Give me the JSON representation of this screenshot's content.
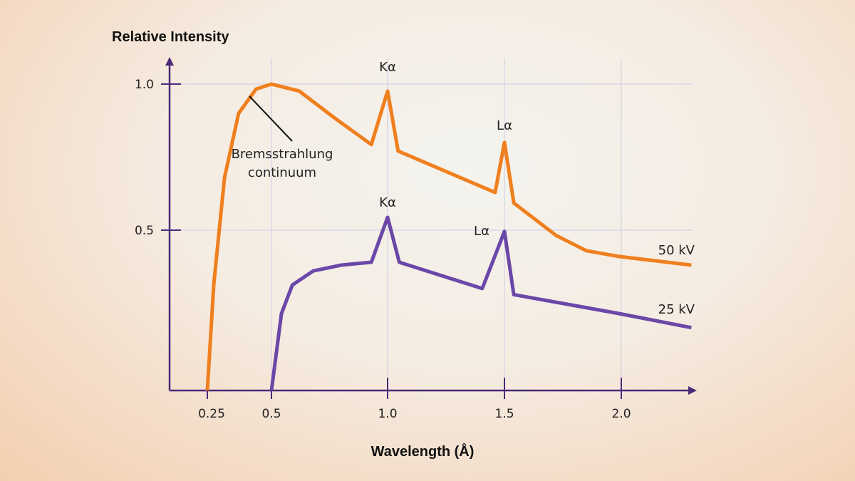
{
  "chart_data": {
    "type": "line",
    "ylabel": "Relative Intensity",
    "xlabel": "Wavelength (Å)",
    "x_ticks": [
      {
        "v": 0.25,
        "label": "0.25"
      },
      {
        "v": 0.5,
        "label": "0.5"
      },
      {
        "v": 1.0,
        "label": "1.0"
      },
      {
        "v": 1.5,
        "label": "1.5"
      },
      {
        "v": 2.0,
        "label": "2.0"
      }
    ],
    "y_ticks": [
      {
        "v": 0.5,
        "label": "0.5"
      },
      {
        "v": 1.0,
        "label": "1.0"
      }
    ],
    "xlim": [
      0.1,
      2.3
    ],
    "ylim": [
      0,
      1.05
    ],
    "grid": true,
    "series": [
      {
        "name": "50 kV",
        "color": "#f07f1e",
        "points": [
          [
            0.25,
            0
          ],
          [
            0.275,
            0.33
          ],
          [
            0.317,
            0.68
          ],
          [
            0.372,
            0.9
          ],
          [
            0.44,
            0.983
          ],
          [
            0.5,
            1.0
          ],
          [
            0.62,
            0.976
          ],
          [
            0.77,
            0.885
          ],
          [
            0.93,
            0.793
          ],
          [
            1.0,
            0.976
          ],
          [
            1.045,
            0.771
          ],
          [
            1.46,
            0.629
          ],
          [
            1.5,
            0.8
          ],
          [
            1.54,
            0.593
          ],
          [
            1.72,
            0.484
          ],
          [
            1.85,
            0.436
          ],
          [
            1.99,
            0.418
          ],
          [
            2.3,
            0.391
          ]
        ]
      },
      {
        "name": "25 kV",
        "color": "#6b47a8",
        "points": [
          [
            0.5,
            0
          ],
          [
            0.543,
            0.24
          ],
          [
            0.59,
            0.329
          ],
          [
            0.68,
            0.373
          ],
          [
            0.8,
            0.391
          ],
          [
            0.93,
            0.4
          ],
          [
            1.0,
            0.544
          ],
          [
            1.05,
            0.4
          ],
          [
            1.405,
            0.318
          ],
          [
            1.5,
            0.496
          ],
          [
            1.54,
            0.299
          ],
          [
            1.99,
            0.24
          ],
          [
            2.3,
            0.196
          ]
        ]
      }
    ],
    "annotations": [
      {
        "text": "Kα",
        "x": 1.0,
        "y": 1.0,
        "series": "50 kV"
      },
      {
        "text": "Lα",
        "x": 1.5,
        "y": 0.8,
        "series": "50 kV"
      },
      {
        "text": "Kα",
        "x": 1.0,
        "y": 0.544,
        "series": "25 kV"
      },
      {
        "text": "Lα",
        "x": 1.5,
        "y": 0.496,
        "series": "25 kV"
      },
      {
        "text": "Bremsstrahlung continuum",
        "x": 0.4,
        "y": 0.95
      }
    ]
  },
  "labels": {
    "brems1": "Bremsstrahlung",
    "brems2": "continuum"
  },
  "colors": {
    "axis": "#4a2a78",
    "grid": "#d6d0e4"
  }
}
